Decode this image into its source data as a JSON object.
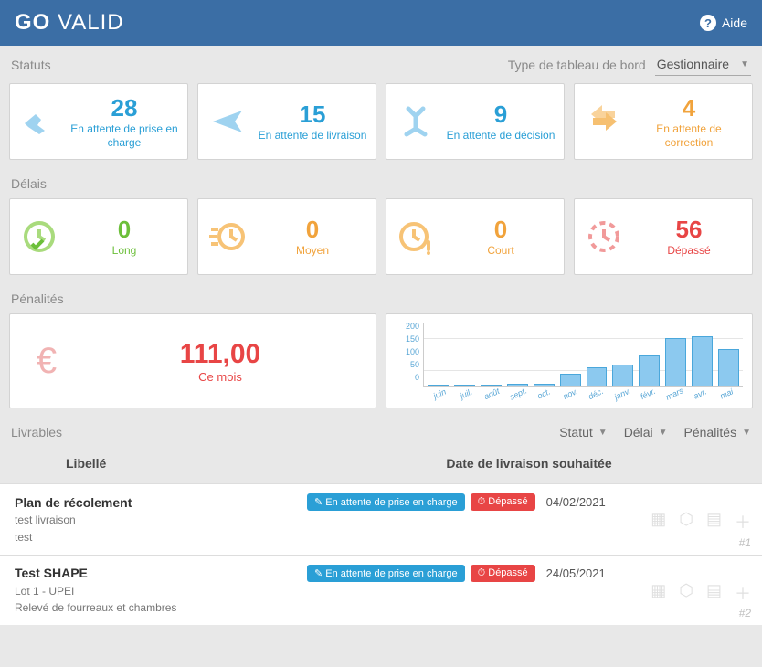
{
  "header": {
    "logo_bold": "GO",
    "logo_thin": "VALID",
    "help_label": "Aide"
  },
  "sections": {
    "statuts": "Statuts",
    "delais": "Délais",
    "penalites": "Pénalités",
    "livrables": "Livrables"
  },
  "type_bord": {
    "label": "Type de tableau de bord",
    "value": "Gestionnaire"
  },
  "status_cards": [
    {
      "count": "28",
      "label": "En attente de prise en charge",
      "color": "#2a9fd6"
    },
    {
      "count": "15",
      "label": "En attente de livraison",
      "color": "#2a9fd6"
    },
    {
      "count": "9",
      "label": "En attente de décision",
      "color": "#2a9fd6"
    },
    {
      "count": "4",
      "label": "En attente de correction",
      "color": "#f1a33c"
    }
  ],
  "delay_cards": [
    {
      "count": "0",
      "label": "Long",
      "color": "#6cbf3a"
    },
    {
      "count": "0",
      "label": "Moyen",
      "color": "#f1a33c"
    },
    {
      "count": "0",
      "label": "Court",
      "color": "#f1a33c"
    },
    {
      "count": "56",
      "label": "Dépassé",
      "color": "#e84545"
    }
  ],
  "penalties": {
    "amount": "111,00",
    "sublabel": "Ce mois"
  },
  "chart": {
    "ylim": [
      0,
      200
    ],
    "yticks": [
      "200",
      "150",
      "100",
      "50",
      "0"
    ],
    "months": [
      "juin",
      "juil.",
      "août",
      "sept.",
      "oct.",
      "nov.",
      "déc.",
      "janv.",
      "févr.",
      "mars",
      "avr.",
      "mai"
    ],
    "values": [
      5,
      5,
      3,
      10,
      8,
      40,
      60,
      70,
      100,
      155,
      160,
      120
    ],
    "bar_fill": "#8cc9ef",
    "bar_border": "#4aa7db",
    "axis_color": "#5aa7d6"
  },
  "filters": {
    "statut": "Statut",
    "delai": "Délai",
    "penalites": "Pénalités"
  },
  "table": {
    "col_libelle": "Libellé",
    "col_date": "Date de livraison souhaitée"
  },
  "deliverables": [
    {
      "title": "Plan de récolement",
      "sub1": "test livraison",
      "sub2": "test",
      "badge_status": "En attente de prise en charge",
      "badge_delay": "Dépassé",
      "date": "04/02/2021",
      "index": "#1"
    },
    {
      "title": "Test SHAPE",
      "sub1": "Lot 1 - UPEI",
      "sub2": "Relevé de fourreaux et chambres",
      "badge_status": "En attente de prise en charge",
      "badge_delay": "Dépassé",
      "date": "24/05/2021",
      "index": "#2"
    }
  ]
}
